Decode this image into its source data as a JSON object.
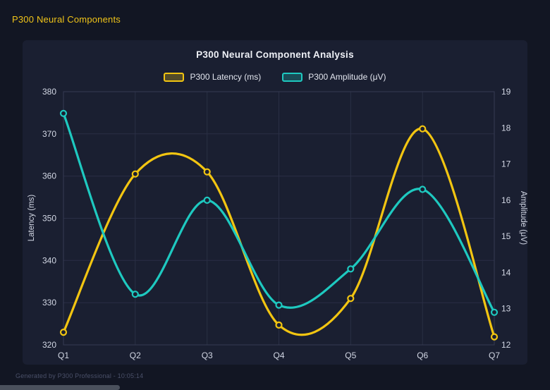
{
  "page": {
    "header_title": "P300 Neural Components",
    "footer_text": "Generated by P300 Professional - 10:05:14"
  },
  "colors": {
    "background": "#121623",
    "panel": "#1a1f31",
    "grid": "#2a2f45",
    "plot_border": "#353b52",
    "tick_text": "#d2d7e4",
    "title_text": "#eef0f6",
    "header_text": "#f0c419",
    "footer_text": "#4a5069",
    "latency_series": "#f2c511",
    "amplitude_series": "#1ec9c0"
  },
  "chart_data": {
    "type": "line",
    "title": "P300 Neural Component Analysis",
    "smooth": true,
    "grid": true,
    "legend_position": "top",
    "categories": [
      "Q1",
      "Q2",
      "Q3",
      "Q4",
      "Q5",
      "Q6",
      "Q7"
    ],
    "series": [
      {
        "name": "P300 Latency (ms)",
        "axis": "left",
        "color": "#f2c511",
        "values": [
          323.0,
          360.5,
          361.0,
          324.7,
          331.0,
          371.2,
          321.9
        ]
      },
      {
        "name": "P300 Amplitude (μV)",
        "axis": "right",
        "color": "#1ec9c0",
        "values": [
          18.4,
          13.4,
          16.0,
          13.1,
          14.1,
          16.3,
          12.9
        ]
      }
    ],
    "left_axis": {
      "label": "Latency (ms)",
      "min": 320,
      "max": 380,
      "tick_step": 10,
      "ticks": [
        380,
        370,
        360,
        350,
        340,
        330,
        320
      ]
    },
    "right_axis": {
      "label": "Amplitude (μV)",
      "min": 12,
      "max": 19,
      "tick_step": 1,
      "ticks": [
        19,
        18,
        17,
        16,
        15,
        14,
        13,
        12
      ]
    }
  }
}
